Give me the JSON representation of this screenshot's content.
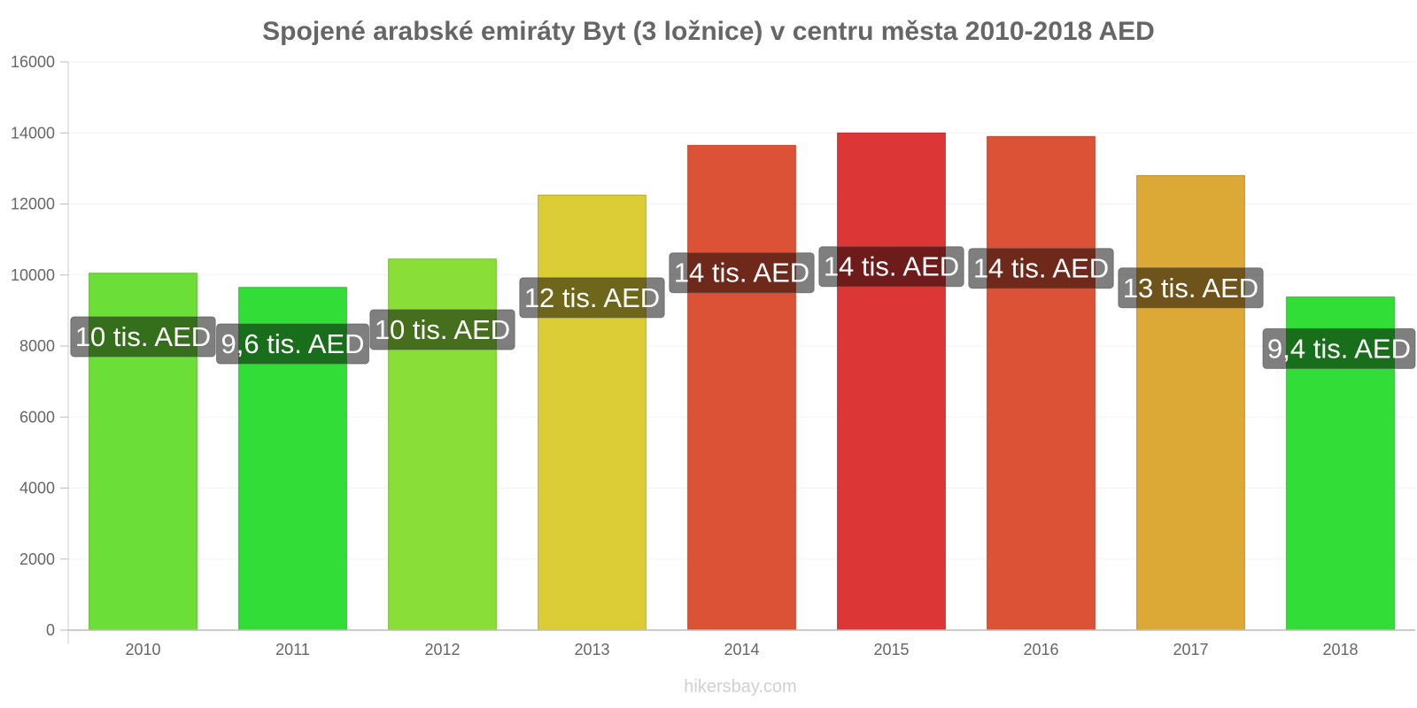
{
  "chart_data": {
    "type": "bar",
    "title": "Spojené arabské emiráty Byt (3 ložnice) v centru města 2010-2018 AED",
    "xlabel": "",
    "ylabel": "",
    "ylim": [
      0,
      16000
    ],
    "yticks": [
      0,
      2000,
      4000,
      6000,
      8000,
      10000,
      12000,
      14000,
      16000
    ],
    "grid": true,
    "legend": "none",
    "categories": [
      "2010",
      "2011",
      "2012",
      "2013",
      "2014",
      "2015",
      "2016",
      "2017",
      "2018"
    ],
    "values": [
      10050,
      9650,
      10450,
      12250,
      13650,
      14000,
      13900,
      12800,
      9380
    ],
    "data_labels": [
      "10 tis. AED",
      "9,6 tis. AED",
      "10 tis. AED",
      "12 tis. AED",
      "14 tis. AED",
      "14 tis. AED",
      "14 tis. AED",
      "13 tis. AED",
      "9,4 tis. AED"
    ],
    "colors": [
      "#6cde38",
      "#33dd38",
      "#8ade38",
      "#dccc36",
      "#dc5236",
      "#dc3636",
      "#dc5236",
      "#dca836",
      "#33dd38"
    ]
  },
  "footer": "hikersbay.com"
}
